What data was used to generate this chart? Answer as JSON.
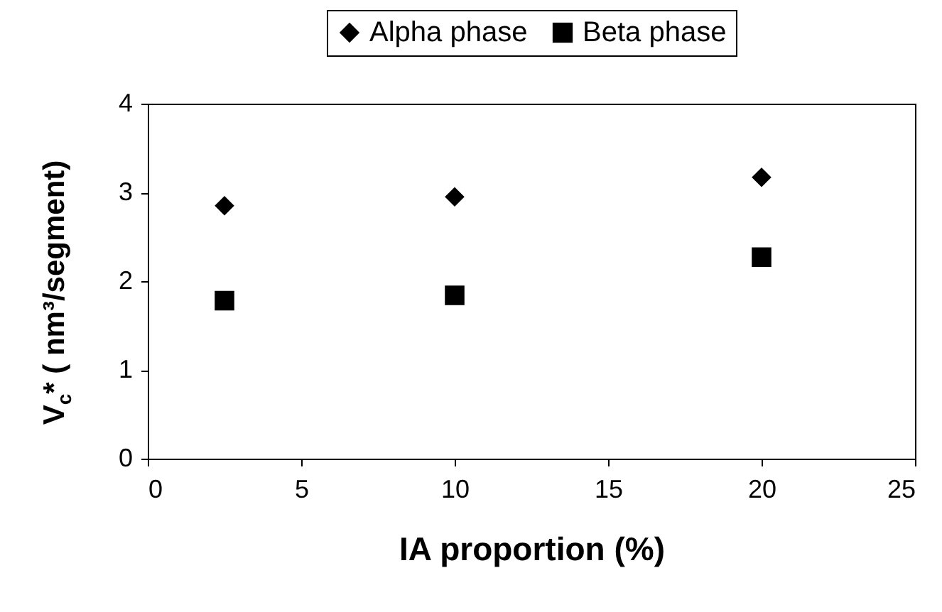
{
  "chart_data": {
    "type": "scatter",
    "xlabel": "IA proportion (%)",
    "ylabel": "V$_{c}$* ( nm³/segment)",
    "x": [
      2.5,
      10,
      20
    ],
    "series": [
      {
        "name": "Alpha phase",
        "color": "#000000",
        "marker": "diamond",
        "values": [
          2.85,
          2.95,
          3.17
        ]
      },
      {
        "name": "Beta phase",
        "color": "#000000",
        "marker": "square",
        "values": [
          1.78,
          1.84,
          2.27
        ]
      }
    ],
    "xlim": [
      0,
      25
    ],
    "xticks": [
      0,
      5,
      10,
      15,
      20,
      25
    ],
    "ylim": [
      0,
      4
    ],
    "yticks": [
      0,
      1,
      2,
      3,
      4
    ],
    "grid": false,
    "legend": "top"
  }
}
